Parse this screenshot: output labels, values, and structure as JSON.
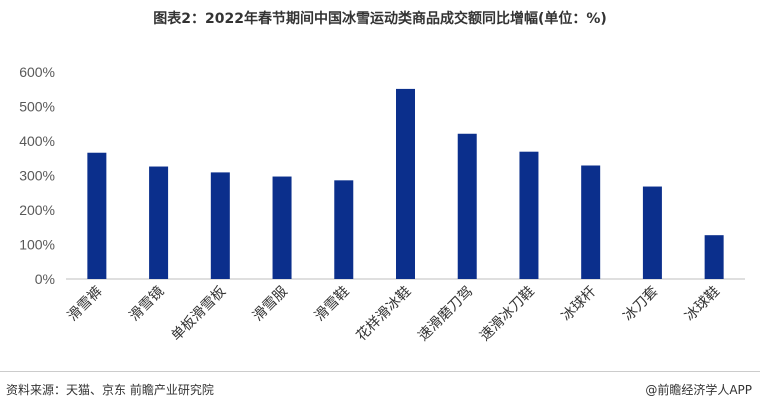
{
  "title": "图表2：2022年春节期间中国冰雪运动类商品成交额同比增幅(单位：%)",
  "chart_data": {
    "type": "bar",
    "title": "图表2：2022年春节期间中国冰雪运动类商品成交额同比增幅(单位：%)",
    "categories": [
      "滑雪裤",
      "滑雪镜",
      "单板滑雪板",
      "滑雪服",
      "滑雪鞋",
      "花样滑冰鞋",
      "速滑磨刀驾",
      "速滑冰刀鞋",
      "冰球杆",
      "冰刀套",
      "冰球鞋"
    ],
    "values": [
      366,
      326,
      309,
      297,
      286,
      551,
      421,
      369,
      329,
      268,
      127
    ],
    "unit": "%",
    "ylim": [
      0,
      600
    ],
    "yticks": [
      "0%",
      "100%",
      "200%",
      "300%",
      "400%",
      "500%",
      "600%"
    ],
    "grid": false,
    "bar_color": "#0b2f8c"
  },
  "footer": {
    "source": "资料来源：天猫、京东 前瞻产业研究院",
    "credit": "@前瞻经济学人APP"
  },
  "watermark": "前瞻产业研究院"
}
